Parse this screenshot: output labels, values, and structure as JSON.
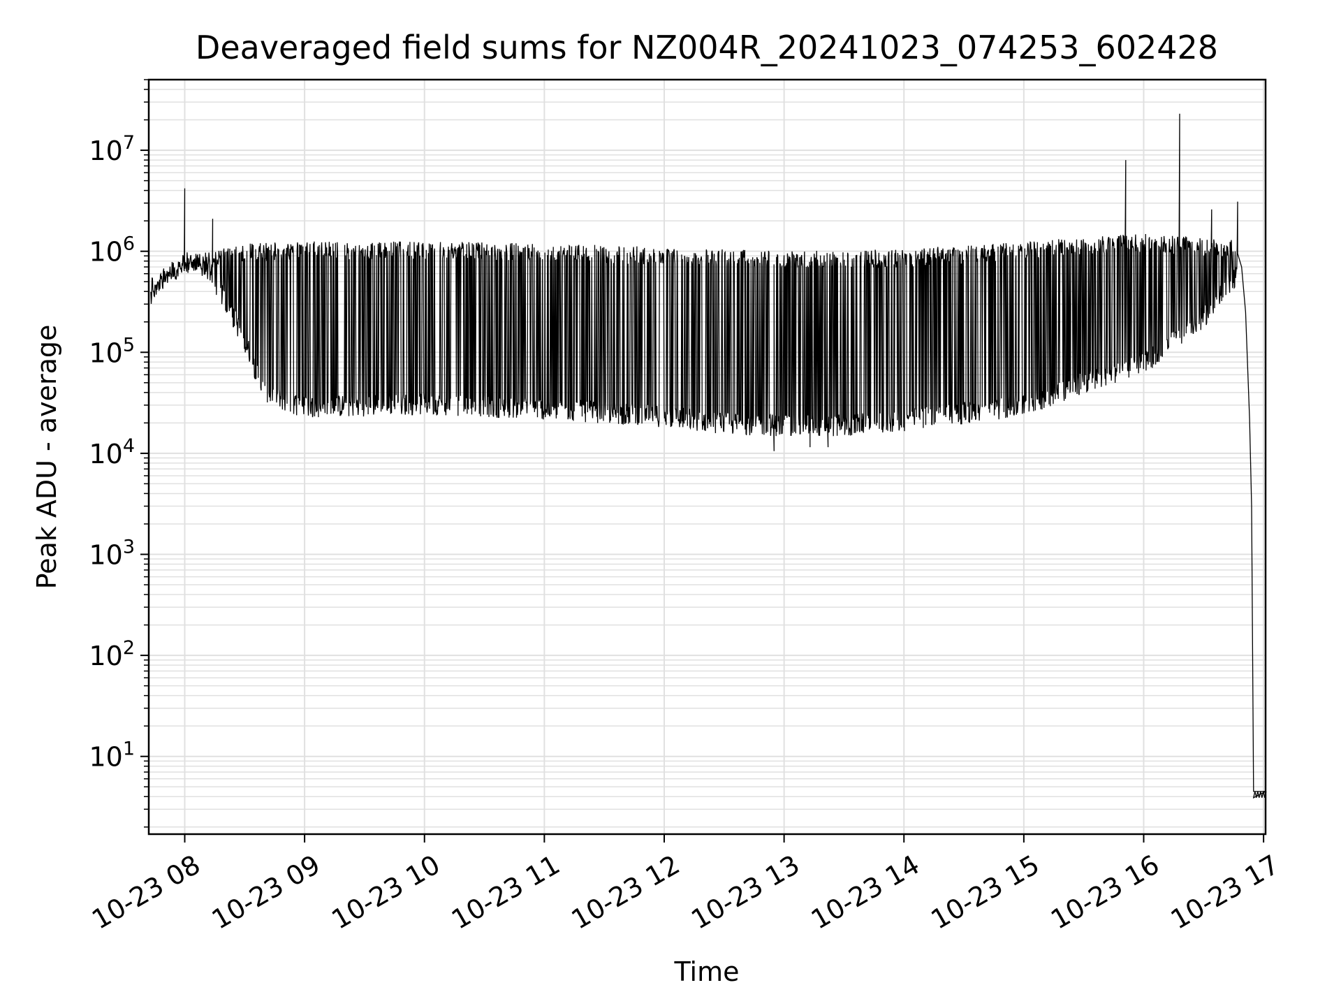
{
  "chart_data": {
    "type": "line",
    "title": "Deaveraged field sums for NZ004R_20241023_074253_602428",
    "xlabel": "Time",
    "ylabel": "Peak ADU - average",
    "yscale": "log",
    "ylim": [
      1.7,
      50000000
    ],
    "xlim": [
      "2024-10-23 07:42",
      "2024-10-23 17:01"
    ],
    "x_tick_labels": [
      "10-23 08",
      "10-23 09",
      "10-23 10",
      "10-23 11",
      "10-23 12",
      "10-23 13",
      "10-23 14",
      "10-23 15",
      "10-23 16",
      "10-23 17"
    ],
    "y_tick_labels": [
      {
        "base": "10",
        "exp": "1"
      },
      {
        "base": "10",
        "exp": "2"
      },
      {
        "base": "10",
        "exp": "3"
      },
      {
        "base": "10",
        "exp": "4"
      },
      {
        "base": "10",
        "exp": "5"
      },
      {
        "base": "10",
        "exp": "6"
      },
      {
        "base": "10",
        "exp": "7"
      }
    ],
    "grid": true,
    "line_color": "#000000",
    "grid_color": "#e0e0e0",
    "series": [
      {
        "envelope_upper": [
          {
            "x": "2024-10-23 07:43",
            "y": 450000
          },
          {
            "x": "2024-10-23 07:50",
            "y": 700000
          },
          {
            "x": "2024-10-23 08:00",
            "y": 900000
          },
          {
            "x": "2024-10-23 08:10",
            "y": 1000000
          },
          {
            "x": "2024-10-23 08:30",
            "y": 1200000
          },
          {
            "x": "2024-10-23 09:00",
            "y": 1250000
          },
          {
            "x": "2024-10-23 10:00",
            "y": 1250000
          },
          {
            "x": "2024-10-23 11:00",
            "y": 1200000
          },
          {
            "x": "2024-10-23 12:00",
            "y": 1100000
          },
          {
            "x": "2024-10-23 13:00",
            "y": 1000000
          },
          {
            "x": "2024-10-23 14:00",
            "y": 1050000
          },
          {
            "x": "2024-10-23 15:00",
            "y": 1250000
          },
          {
            "x": "2024-10-23 16:00",
            "y": 1500000
          },
          {
            "x": "2024-10-23 16:45",
            "y": 1300000
          }
        ],
        "envelope_lower": [
          {
            "x": "2024-10-23 07:43",
            "y": 400000
          },
          {
            "x": "2024-10-23 08:00",
            "y": 700000
          },
          {
            "x": "2024-10-23 08:12",
            "y": 600000
          },
          {
            "x": "2024-10-23 08:20",
            "y": 300000
          },
          {
            "x": "2024-10-23 08:30",
            "y": 120000
          },
          {
            "x": "2024-10-23 08:40",
            "y": 35000
          },
          {
            "x": "2024-10-23 09:00",
            "y": 26000
          },
          {
            "x": "2024-10-23 10:00",
            "y": 28000
          },
          {
            "x": "2024-10-23 11:00",
            "y": 25000
          },
          {
            "x": "2024-10-23 12:00",
            "y": 21000
          },
          {
            "x": "2024-10-23 12:30",
            "y": 18000
          },
          {
            "x": "2024-10-23 13:00",
            "y": 17000
          },
          {
            "x": "2024-10-23 13:30",
            "y": 17000
          },
          {
            "x": "2024-10-23 14:00",
            "y": 19000
          },
          {
            "x": "2024-10-23 15:00",
            "y": 27000
          },
          {
            "x": "2024-10-23 15:30",
            "y": 45000
          },
          {
            "x": "2024-10-23 16:00",
            "y": 70000
          },
          {
            "x": "2024-10-23 16:30",
            "y": 200000
          },
          {
            "x": "2024-10-23 16:45",
            "y": 500000
          }
        ],
        "spikes": [
          {
            "x": "2024-10-23 08:00",
            "y": 4200000
          },
          {
            "x": "2024-10-23 08:14",
            "y": 2100000
          },
          {
            "x": "2024-10-23 15:51",
            "y": 8000000
          },
          {
            "x": "2024-10-23 16:18",
            "y": 23000000
          },
          {
            "x": "2024-10-23 16:34",
            "y": 2600000
          },
          {
            "x": "2024-10-23 16:47",
            "y": 3100000
          }
        ],
        "deep_dips": [
          {
            "x": "2024-10-23 12:55",
            "y": 10500
          },
          {
            "x": "2024-10-23 13:13",
            "y": 11500
          },
          {
            "x": "2024-10-23 13:22",
            "y": 11500
          }
        ],
        "tail": [
          {
            "x": "2024-10-23 16:47",
            "y": 950000
          },
          {
            "x": "2024-10-23 16:49",
            "y": 700000
          },
          {
            "x": "2024-10-23 16:51",
            "y": 250000
          },
          {
            "x": "2024-10-23 16:53",
            "y": 22000
          },
          {
            "x": "2024-10-23 16:54",
            "y": 3000
          },
          {
            "x": "2024-10-23 16:55",
            "y": 4.5
          },
          {
            "x": "2024-10-23 17:01",
            "y": 4.5
          }
        ],
        "tail_floor": 3.9
      }
    ]
  }
}
